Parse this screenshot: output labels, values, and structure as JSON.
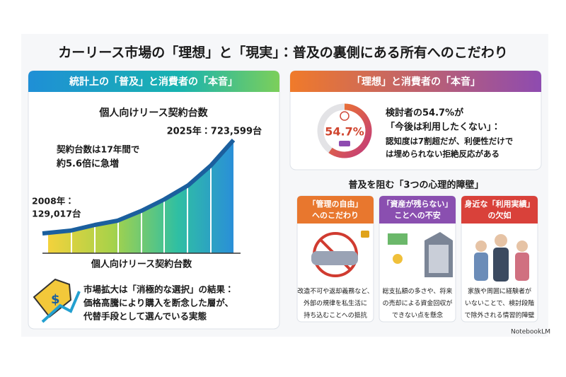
{
  "title": "カーリース市場の「理想」と「現実」：普及の裏側にある所有へのこだわり",
  "left": {
    "header": "統計上の「普及」と消費者の「本音」",
    "chart_title": "個人向けリース契約台数",
    "end_label": "2025年：723,599台",
    "growth": [
      "契約台数は17年間で",
      "約5.6倍に急増"
    ],
    "start_label": [
      "2008年：",
      "129,017台"
    ],
    "axis_label": "個人向けリース契約台数",
    "note": [
      "市場拡大は「消極的な選択」の結果：",
      "価格高騰により購入を断念した層が、",
      "代替手段として選んでいる実態"
    ]
  },
  "right": {
    "header": "「理想」と消費者の「本音」",
    "ring_label": "54.7%",
    "text": [
      "検討者の54.7%が",
      "「今後は利用したくない」：",
      "認知度は7割超だが、利便性だけで",
      "は埋められない拒絶反応がある"
    ],
    "subheading": "普及を阻む「3つの心理的障壁」",
    "cards": [
      {
        "title": [
          "「管理の自由」",
          "へのこだわり"
        ],
        "text": [
          "改造不可や返却義務など、",
          "外部の規律を私生活に",
          "持ち込むことへの抵抗"
        ]
      },
      {
        "title": [
          "「資産が残らない」",
          "ことへの不安"
        ],
        "text": [
          "総支払額の多さや、将来",
          "の売却による資金回収が",
          "できない点を懸念"
        ]
      },
      {
        "title": [
          "身近な「利用実績」",
          "の欠如"
        ],
        "text": [
          "家族や周囲に経験者が",
          "いないことで、検討段階",
          "で除外される情習的障壁"
        ]
      }
    ]
  },
  "footer": "NotebookLM"
}
